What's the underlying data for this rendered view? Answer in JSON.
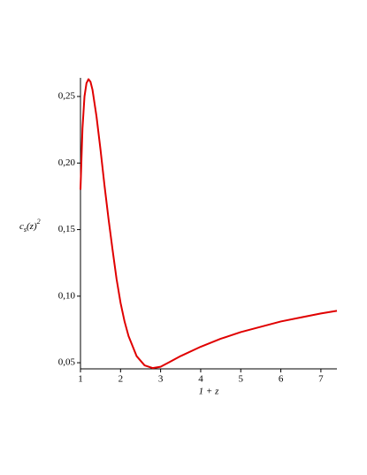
{
  "chart_data": {
    "type": "line",
    "x_label": "1 + z",
    "y_label": {
      "base": "c",
      "sub": "s",
      "mid": "(z)",
      "sup": "2"
    },
    "x": [
      1,
      1.05,
      1.1,
      1.15,
      1.2,
      1.25,
      1.3,
      1.4,
      1.5,
      1.6,
      1.7,
      1.8,
      1.9,
      2.0,
      2.1,
      2.2,
      2.4,
      2.6,
      2.8,
      3.0,
      3.25,
      3.5,
      4.0,
      4.5,
      5.0,
      5.5,
      6.0,
      6.5,
      7.0,
      7.4
    ],
    "series": [
      {
        "color": "#e00000",
        "values": [
          0.18,
          0.226,
          0.25,
          0.26,
          0.263,
          0.261,
          0.255,
          0.235,
          0.21,
          0.183,
          0.158,
          0.135,
          0.113,
          0.095,
          0.081,
          0.07,
          0.055,
          0.048,
          0.046,
          0.047,
          0.051,
          0.055,
          0.062,
          0.068,
          0.073,
          0.077,
          0.081,
          0.084,
          0.087,
          0.089
        ]
      }
    ],
    "xlim": [
      1,
      7.4
    ],
    "ylim": [
      0.0454,
      0.264
    ],
    "xticks": [
      1,
      2,
      3,
      4,
      5,
      6,
      7
    ],
    "yticks": [
      {
        "value": 0.05,
        "label": "0,05"
      },
      {
        "value": 0.1,
        "label": "0,10"
      },
      {
        "value": 0.15,
        "label": "0,15"
      },
      {
        "value": 0.2,
        "label": "0,20"
      },
      {
        "value": 0.25,
        "label": "0,25"
      }
    ]
  }
}
